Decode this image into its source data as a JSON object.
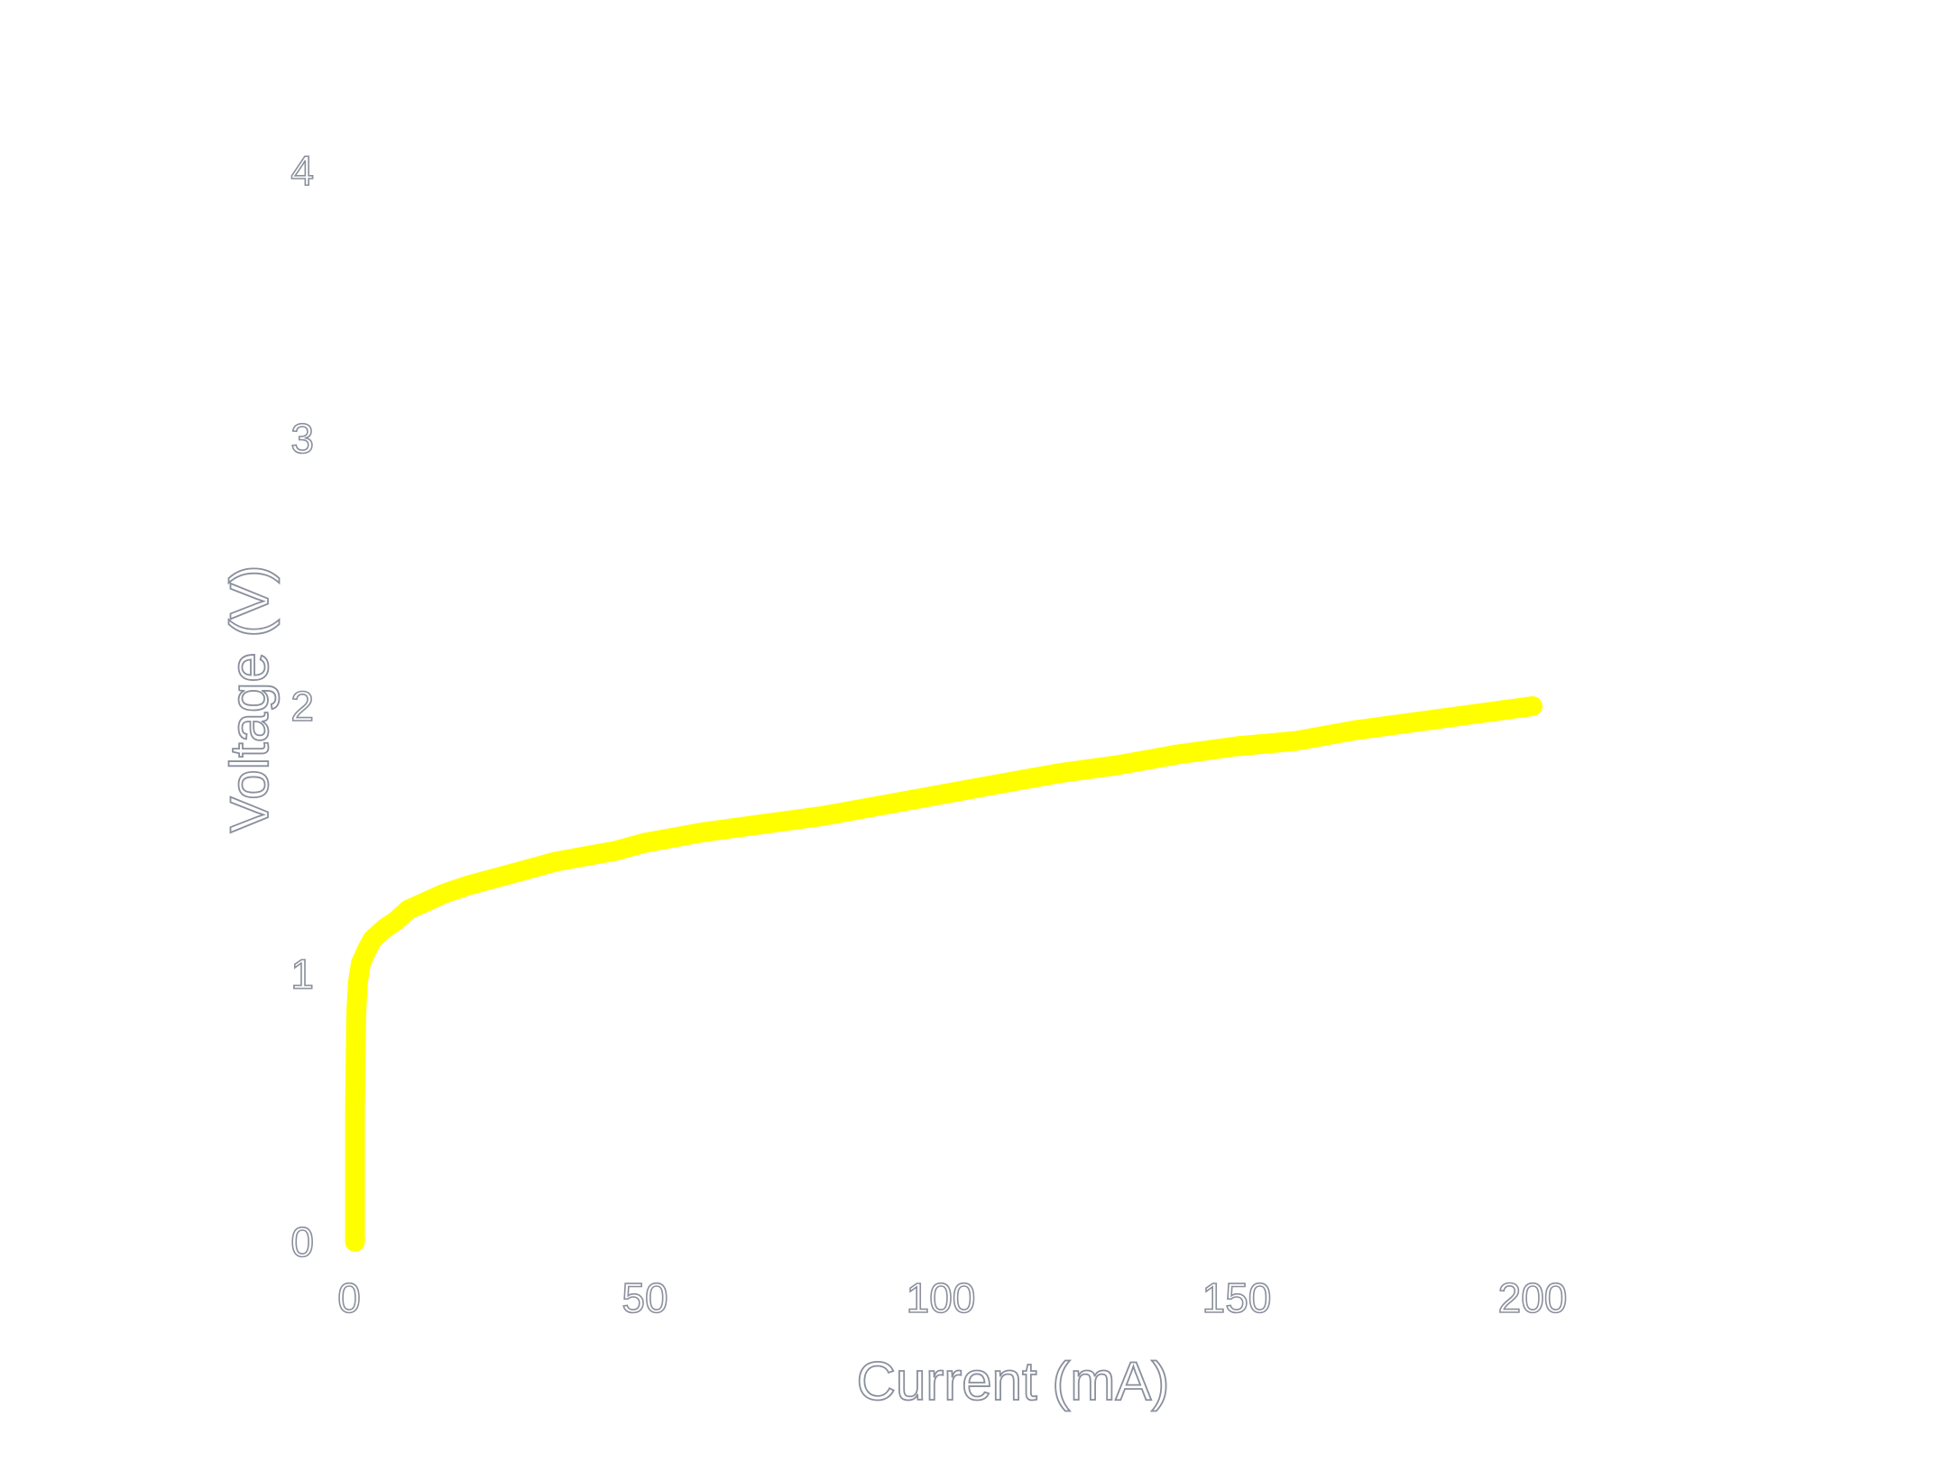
{
  "chart_data": {
    "type": "line",
    "title": "",
    "xlabel": "Current (mA)",
    "ylabel": "Voltage (V)",
    "xlim": [
      0,
      200
    ],
    "ylim": [
      0,
      4
    ],
    "xticks": [
      0,
      50,
      100,
      150,
      200
    ],
    "yticks": [
      0,
      1,
      2,
      3,
      4
    ],
    "grid": false,
    "legend": "none",
    "series": [
      {
        "color": "#ffff00",
        "x": [
          1,
          1,
          1.2,
          1.5,
          2,
          3,
          4,
          6,
          8,
          10,
          13,
          16,
          20,
          25,
          30,
          35,
          40,
          45,
          50,
          60,
          70,
          80,
          90,
          100,
          110,
          120,
          130,
          140,
          150,
          160,
          170,
          180,
          190,
          200
        ],
        "y": [
          0,
          0.5,
          0.85,
          0.97,
          1.04,
          1.09,
          1.13,
          1.17,
          1.2,
          1.24,
          1.27,
          1.3,
          1.33,
          1.36,
          1.39,
          1.42,
          1.44,
          1.46,
          1.49,
          1.53,
          1.56,
          1.59,
          1.63,
          1.67,
          1.71,
          1.75,
          1.78,
          1.82,
          1.85,
          1.87,
          1.91,
          1.94,
          1.97,
          2.0
        ]
      }
    ]
  }
}
